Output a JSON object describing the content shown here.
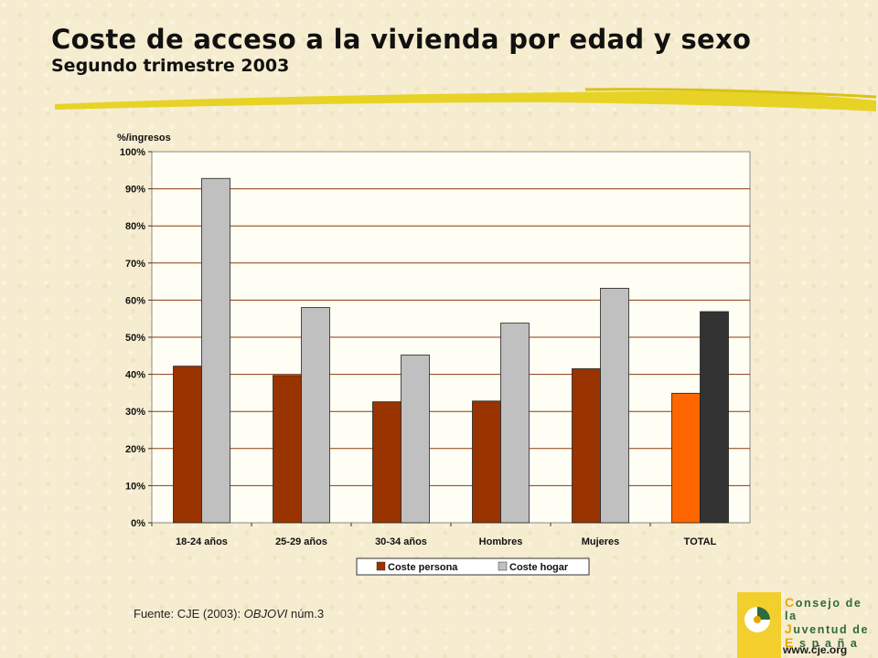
{
  "header": {
    "title": "Coste de acceso a la vivienda por edad y sexo",
    "subtitle": "Segundo trimestre 2003"
  },
  "chart_data": {
    "type": "bar",
    "ylabel": "%/ingresos",
    "ylim": [
      0,
      100
    ],
    "yticks": [
      "0%",
      "10%",
      "20%",
      "30%",
      "40%",
      "50%",
      "60%",
      "70%",
      "80%",
      "90%",
      "100%"
    ],
    "grid": true,
    "legend_position": "bottom",
    "categories": [
      "18-24 años",
      "25-29 años",
      "30-34 años",
      "Hombres",
      "Mujeres",
      "TOTAL"
    ],
    "series": [
      {
        "name": "Coste persona",
        "values": [
          42.2,
          39.7,
          32.6,
          32.8,
          41.5,
          34.9
        ],
        "color": "#993300",
        "highlight_color": "#ff6600"
      },
      {
        "name": "Coste hogar",
        "values": [
          92.8,
          58.0,
          45.2,
          53.8,
          63.2,
          56.9
        ],
        "color": "#c0c0c0",
        "highlight_color": "#333333"
      }
    ],
    "highlight_category": "TOTAL"
  },
  "footer": {
    "source_prefix": "Fuente: CJE (2003): ",
    "source_italic": "OBJOVI",
    "source_suffix": " núm.3"
  },
  "logo": {
    "lines": [
      {
        "cap": "C",
        "rest": "onsejo de la"
      },
      {
        "cap": "J",
        "rest": "uventud de"
      },
      {
        "cap": "E",
        "rest": " s p a ñ a"
      }
    ],
    "url": "www.cje.org"
  },
  "colors": {
    "background": "#f6eccf",
    "accent_stroke": "#e6d21c",
    "gridline": "#8b3a0e",
    "logo_green": "#2f6b3a",
    "logo_yellow": "#e8a800"
  }
}
